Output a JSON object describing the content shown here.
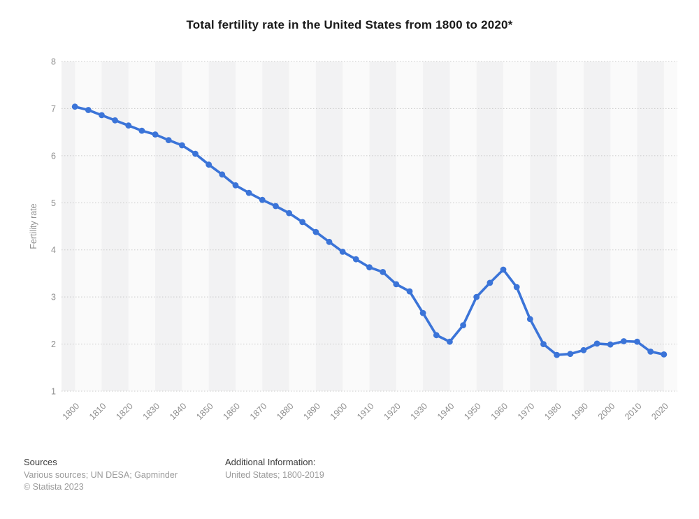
{
  "title": "Total fertility rate in the United States from 1800 to 2020*",
  "chart_data": {
    "type": "line",
    "title": "Total fertility rate in the United States from 1800 to 2020*",
    "xlabel": "",
    "ylabel": "Fertility rate",
    "x": [
      1800,
      1805,
      1810,
      1815,
      1820,
      1825,
      1830,
      1835,
      1840,
      1845,
      1850,
      1855,
      1860,
      1865,
      1870,
      1875,
      1880,
      1885,
      1890,
      1895,
      1900,
      1905,
      1910,
      1915,
      1920,
      1925,
      1930,
      1935,
      1940,
      1945,
      1950,
      1955,
      1960,
      1965,
      1970,
      1975,
      1980,
      1985,
      1990,
      1995,
      2000,
      2005,
      2010,
      2015,
      2020
    ],
    "values": [
      7.04,
      6.97,
      6.86,
      6.75,
      6.64,
      6.53,
      6.45,
      6.33,
      6.22,
      6.04,
      5.81,
      5.6,
      5.37,
      5.21,
      5.06,
      4.93,
      4.78,
      4.59,
      4.38,
      4.17,
      3.96,
      3.8,
      3.63,
      3.53,
      3.27,
      3.12,
      2.66,
      2.19,
      2.05,
      2.4,
      3.0,
      3.3,
      3.58,
      3.21,
      2.53,
      2.0,
      1.77,
      1.79,
      1.87,
      2.01,
      1.99,
      2.06,
      2.05,
      1.84,
      1.78
    ],
    "series_name": "Fertility rate",
    "xlim": [
      1795,
      2025
    ],
    "ylim": [
      1,
      8
    ],
    "y_ticks": [
      1,
      2,
      3,
      4,
      5,
      6,
      7,
      8
    ],
    "x_ticks": [
      1800,
      1810,
      1820,
      1830,
      1840,
      1850,
      1860,
      1870,
      1880,
      1890,
      1900,
      1910,
      1920,
      1930,
      1940,
      1950,
      1960,
      1970,
      1980,
      1990,
      2000,
      2010,
      2020
    ],
    "grid": "horizontal-dotted",
    "legend_position": "none",
    "plot_bands": "alternating decade stripes"
  },
  "colors": {
    "line": "#3b74d8",
    "marker": "#3b74d8",
    "band_dark": "#f2f2f3",
    "band_light": "#fafafa",
    "grid": "#c9c9c9",
    "tick_text": "#8f8f8f",
    "axis_title_text": "#8f8f8f",
    "title_text": "#1a1a1a",
    "footer_label": "#3a3a3a",
    "footer_gray": "#9b9b9b"
  },
  "footer": {
    "sources_label": "Sources",
    "sources_text": "Various sources; UN DESA; Gapminder",
    "copyright": "© Statista 2023",
    "additional_label": "Additional Information:",
    "additional_text": "United States; 1800-2019"
  }
}
